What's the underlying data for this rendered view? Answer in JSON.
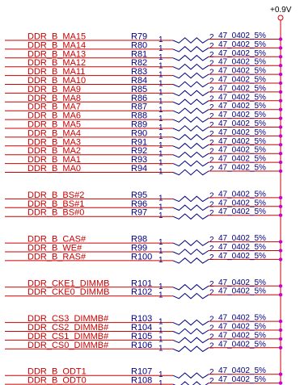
{
  "power_rail": "+0.9V",
  "colors": {
    "wire": "#cc0000",
    "rail": "#cc0000",
    "junction": "#cc00cc",
    "resistor": "#000080",
    "text_blue": "#000080",
    "net_label": "#cc0000"
  },
  "resistors": [
    {
      "net": "DDR_B_MA15",
      "ref": "R79",
      "pin1": "1",
      "pin2": "2",
      "value": "47_0402_5%"
    },
    {
      "net": "DDR_B_MA14",
      "ref": "R80",
      "pin1": "1",
      "pin2": "2",
      "value": "47_0402_5%"
    },
    {
      "net": "DDR_B_MA13",
      "ref": "R81",
      "pin1": "1",
      "pin2": "2",
      "value": "47_0402_5%"
    },
    {
      "net": "DDR_B_MA12",
      "ref": "R82",
      "pin1": "1",
      "pin2": "2",
      "value": "47_0402_5%"
    },
    {
      "net": "DDR_B_MA11",
      "ref": "R83",
      "pin1": "1",
      "pin2": "2",
      "value": "47_0402_5%"
    },
    {
      "net": "DDR_B_MA10",
      "ref": "R84",
      "pin1": "1",
      "pin2": "2",
      "value": "47_0402_5%"
    },
    {
      "net": "DDR_B_MA9",
      "ref": "R85",
      "pin1": "1",
      "pin2": "2",
      "value": "47_0402_5%"
    },
    {
      "net": "DDR_B_MA8",
      "ref": "R86",
      "pin1": "1",
      "pin2": "2",
      "value": "47_0402_5%"
    },
    {
      "net": "DDR_B_MA7",
      "ref": "R87",
      "pin1": "1",
      "pin2": "2",
      "value": "47_0402_5%"
    },
    {
      "net": "DDR_B_MA6",
      "ref": "R88",
      "pin1": "1",
      "pin2": "2",
      "value": "47_0402_5%"
    },
    {
      "net": "DDR_B_MA5",
      "ref": "R89",
      "pin1": "1",
      "pin2": "2",
      "value": "47_0402_5%"
    },
    {
      "net": "DDR_B_MA4",
      "ref": "R90",
      "pin1": "1",
      "pin2": "2",
      "value": "47_0402_5%"
    },
    {
      "net": "DDR_B_MA3",
      "ref": "R91",
      "pin1": "1",
      "pin2": "2",
      "value": "47_0402_5%"
    },
    {
      "net": "DDR_B_MA2",
      "ref": "R92",
      "pin1": "1",
      "pin2": "2",
      "value": "47_0402_5%"
    },
    {
      "net": "DDR_B_MA1",
      "ref": "R93",
      "pin1": "1",
      "pin2": "2",
      "value": "47_0402_5%"
    },
    {
      "net": "DDR_B_MA0",
      "ref": "R94",
      "pin1": "1",
      "pin2": "2",
      "value": "47_0402_5%"
    },
    {
      "net": "DDR_B_BS#2",
      "ref": "R95",
      "pin1": "1",
      "pin2": "2",
      "value": "47_0402_5%"
    },
    {
      "net": "DDR_B_BS#1",
      "ref": "R96",
      "pin1": "1",
      "pin2": "2",
      "value": "47_0402_5%"
    },
    {
      "net": "DDR_B_BS#0",
      "ref": "R97",
      "pin1": "1",
      "pin2": "2",
      "value": "47_0402_5%"
    },
    {
      "net": "DDR_B_CAS#",
      "ref": "R98",
      "pin1": "1",
      "pin2": "2",
      "value": "47_0402_5%"
    },
    {
      "net": "DDR_B_WE#",
      "ref": "R99",
      "pin1": "1",
      "pin2": "2",
      "value": "47_0402_5%"
    },
    {
      "net": "DDR_B_RAS#",
      "ref": "R100",
      "pin1": "1",
      "pin2": "2",
      "value": "47_0402_5%"
    },
    {
      "net": "DDR_CKE1_DIMMB",
      "ref": "R101",
      "pin1": "1",
      "pin2": "2",
      "value": "47_0402_5%"
    },
    {
      "net": "DDR_CKE0_DIMMB",
      "ref": "R102",
      "pin1": "1",
      "pin2": "2",
      "value": "47_0402_5%"
    },
    {
      "net": "DDR_CS3_DIMMB#",
      "ref": "R103",
      "pin1": "1",
      "pin2": "2",
      "value": "47_0402_5%"
    },
    {
      "net": "DDR_CS2_DIMMB#",
      "ref": "R104",
      "pin1": "1",
      "pin2": "2",
      "value": "47_0402_5%"
    },
    {
      "net": "DDR_CS1_DIMMB#",
      "ref": "R105",
      "pin1": "1",
      "pin2": "2",
      "value": "47_0402_5%"
    },
    {
      "net": "DDR_CS0_DIMMB#",
      "ref": "R106",
      "pin1": "1",
      "pin2": "2",
      "value": "47_0402_5%"
    },
    {
      "net": "DDR_B_ODT1",
      "ref": "R107",
      "pin1": "1",
      "pin2": "2",
      "value": "47_0402_5%"
    },
    {
      "net": "DDR_B_ODT0",
      "ref": "R108",
      "pin1": "1",
      "pin2": "2",
      "value": "47_0402_5%"
    }
  ]
}
